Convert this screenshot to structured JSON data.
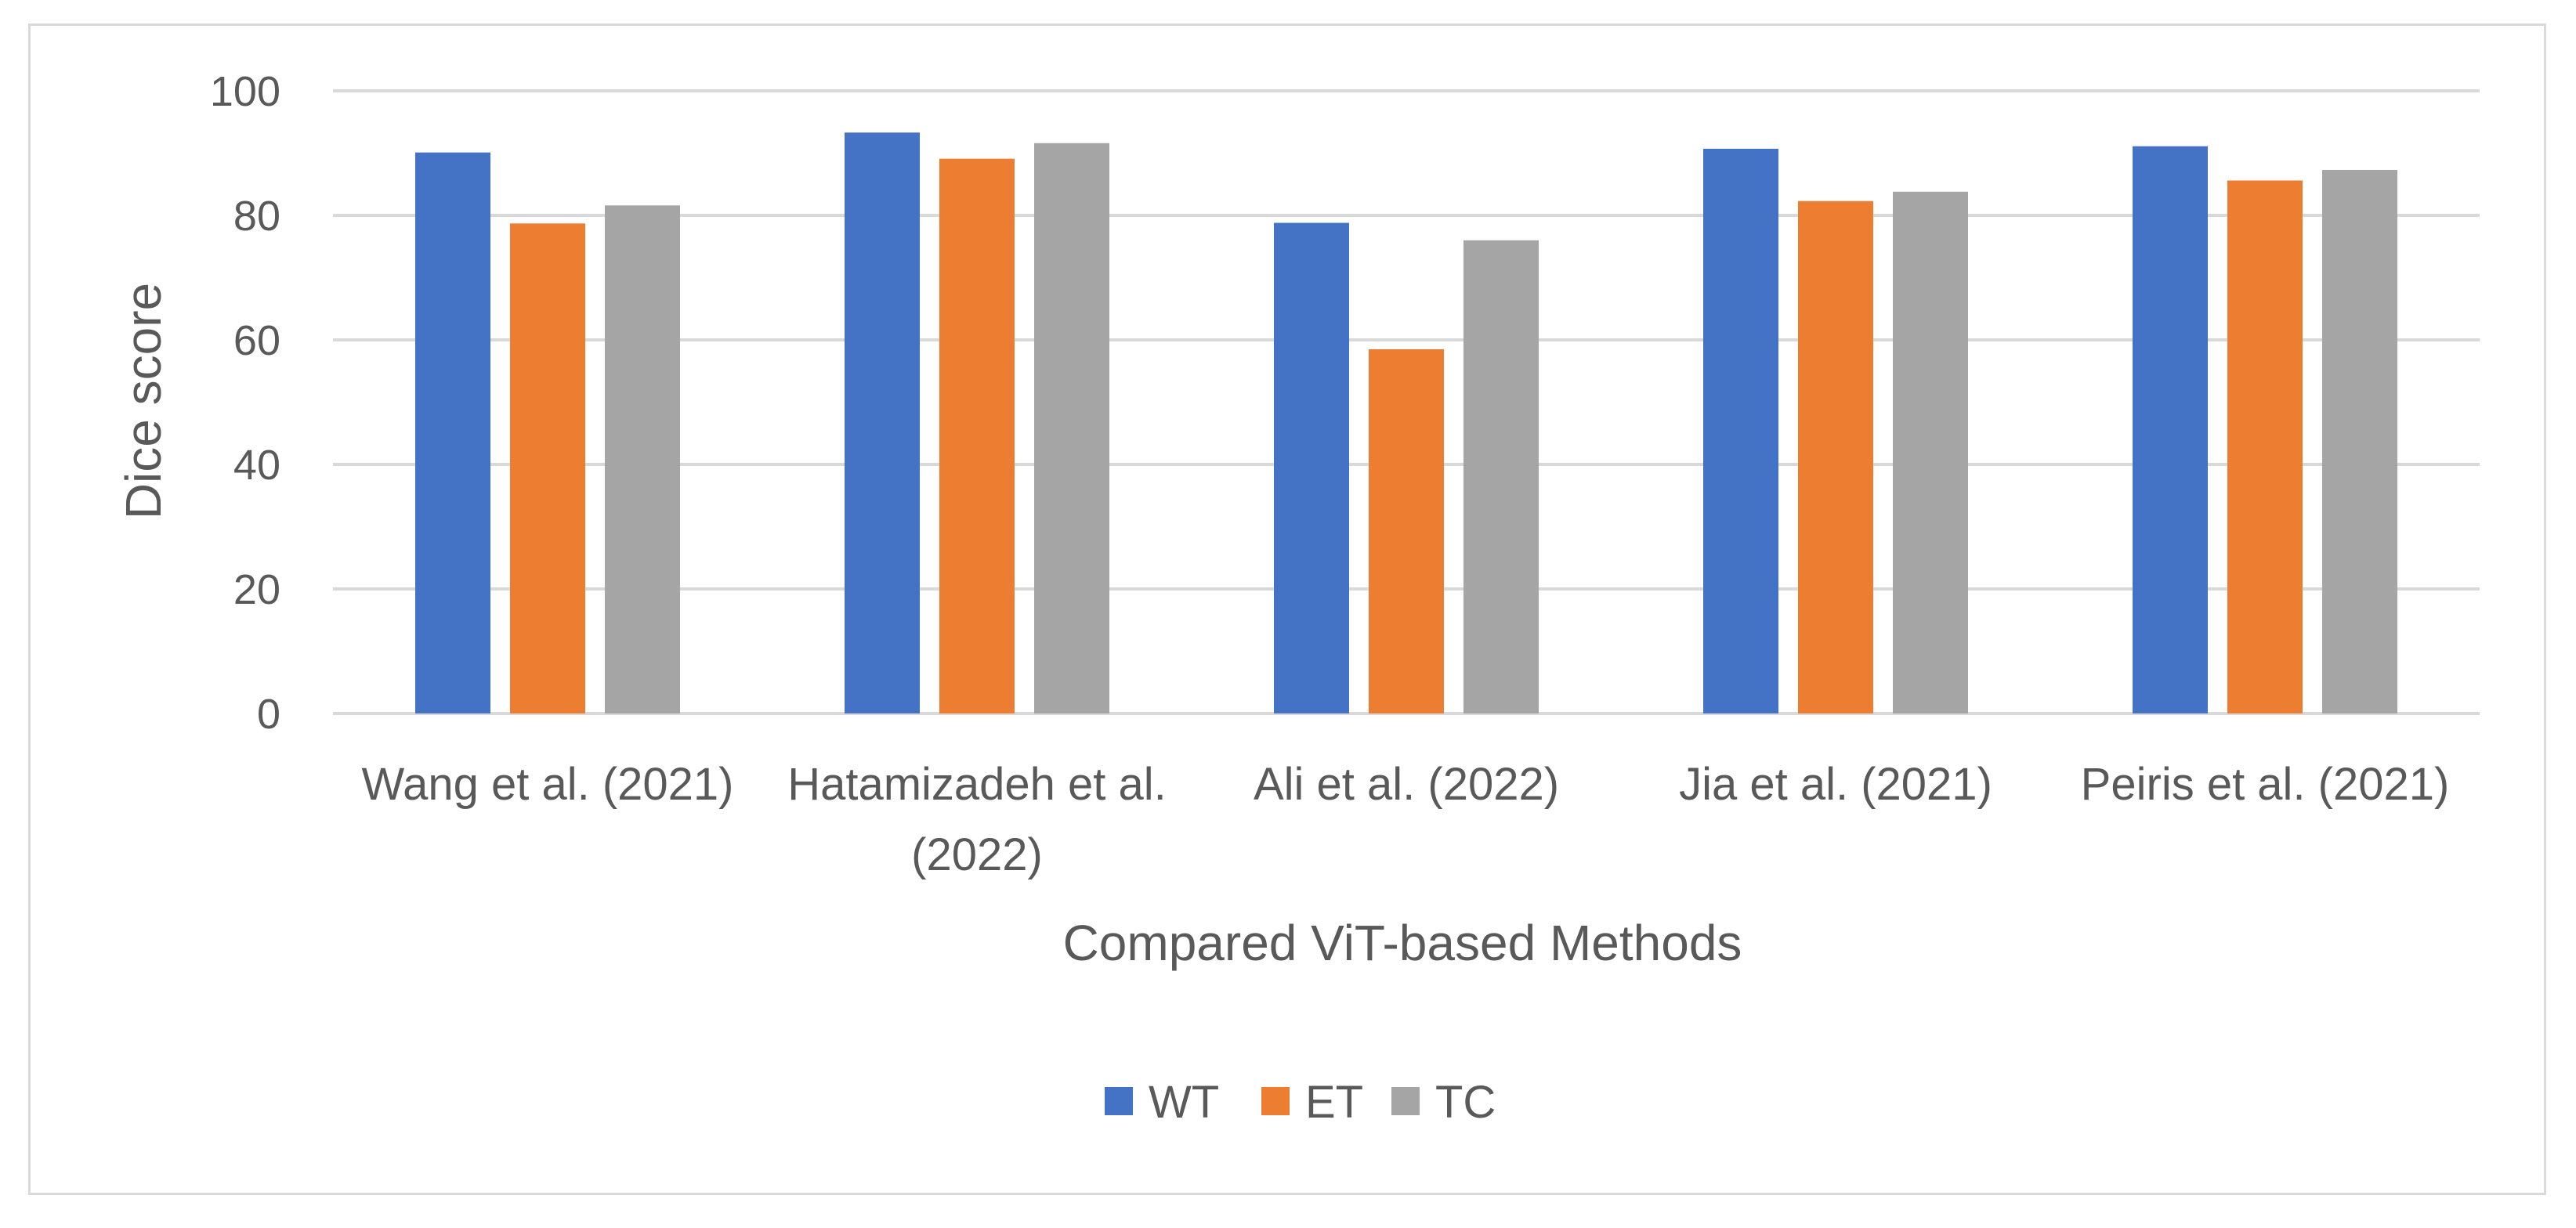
{
  "chart_data": {
    "type": "bar",
    "title": "",
    "xlabel": "Compared ViT-based Methods",
    "ylabel": "Dice score",
    "ylim": [
      0,
      100
    ],
    "yticks": [
      "0",
      "20",
      "40",
      "60",
      "80",
      "100"
    ],
    "grid": true,
    "legend_position": "bottom",
    "categories": [
      [
        "Wang et al. (2021)"
      ],
      [
        "Hatamizadeh et al.",
        "(2022)"
      ],
      [
        "Ali et al. (2022)"
      ],
      [
        "Jia et al. (2021)"
      ],
      [
        "Peiris et al. (2021)"
      ]
    ],
    "series": [
      {
        "name": "WT",
        "color": "#4472c4",
        "values": [
          90.1,
          93.3,
          78.8,
          90.7,
          91.1
        ]
      },
      {
        "name": "ET",
        "color": "#ed7d31",
        "values": [
          78.7,
          89.1,
          58.5,
          82.3,
          85.6
        ]
      },
      {
        "name": "TC",
        "color": "#a5a5a5",
        "values": [
          81.6,
          91.6,
          76.0,
          83.8,
          87.3
        ]
      }
    ]
  }
}
